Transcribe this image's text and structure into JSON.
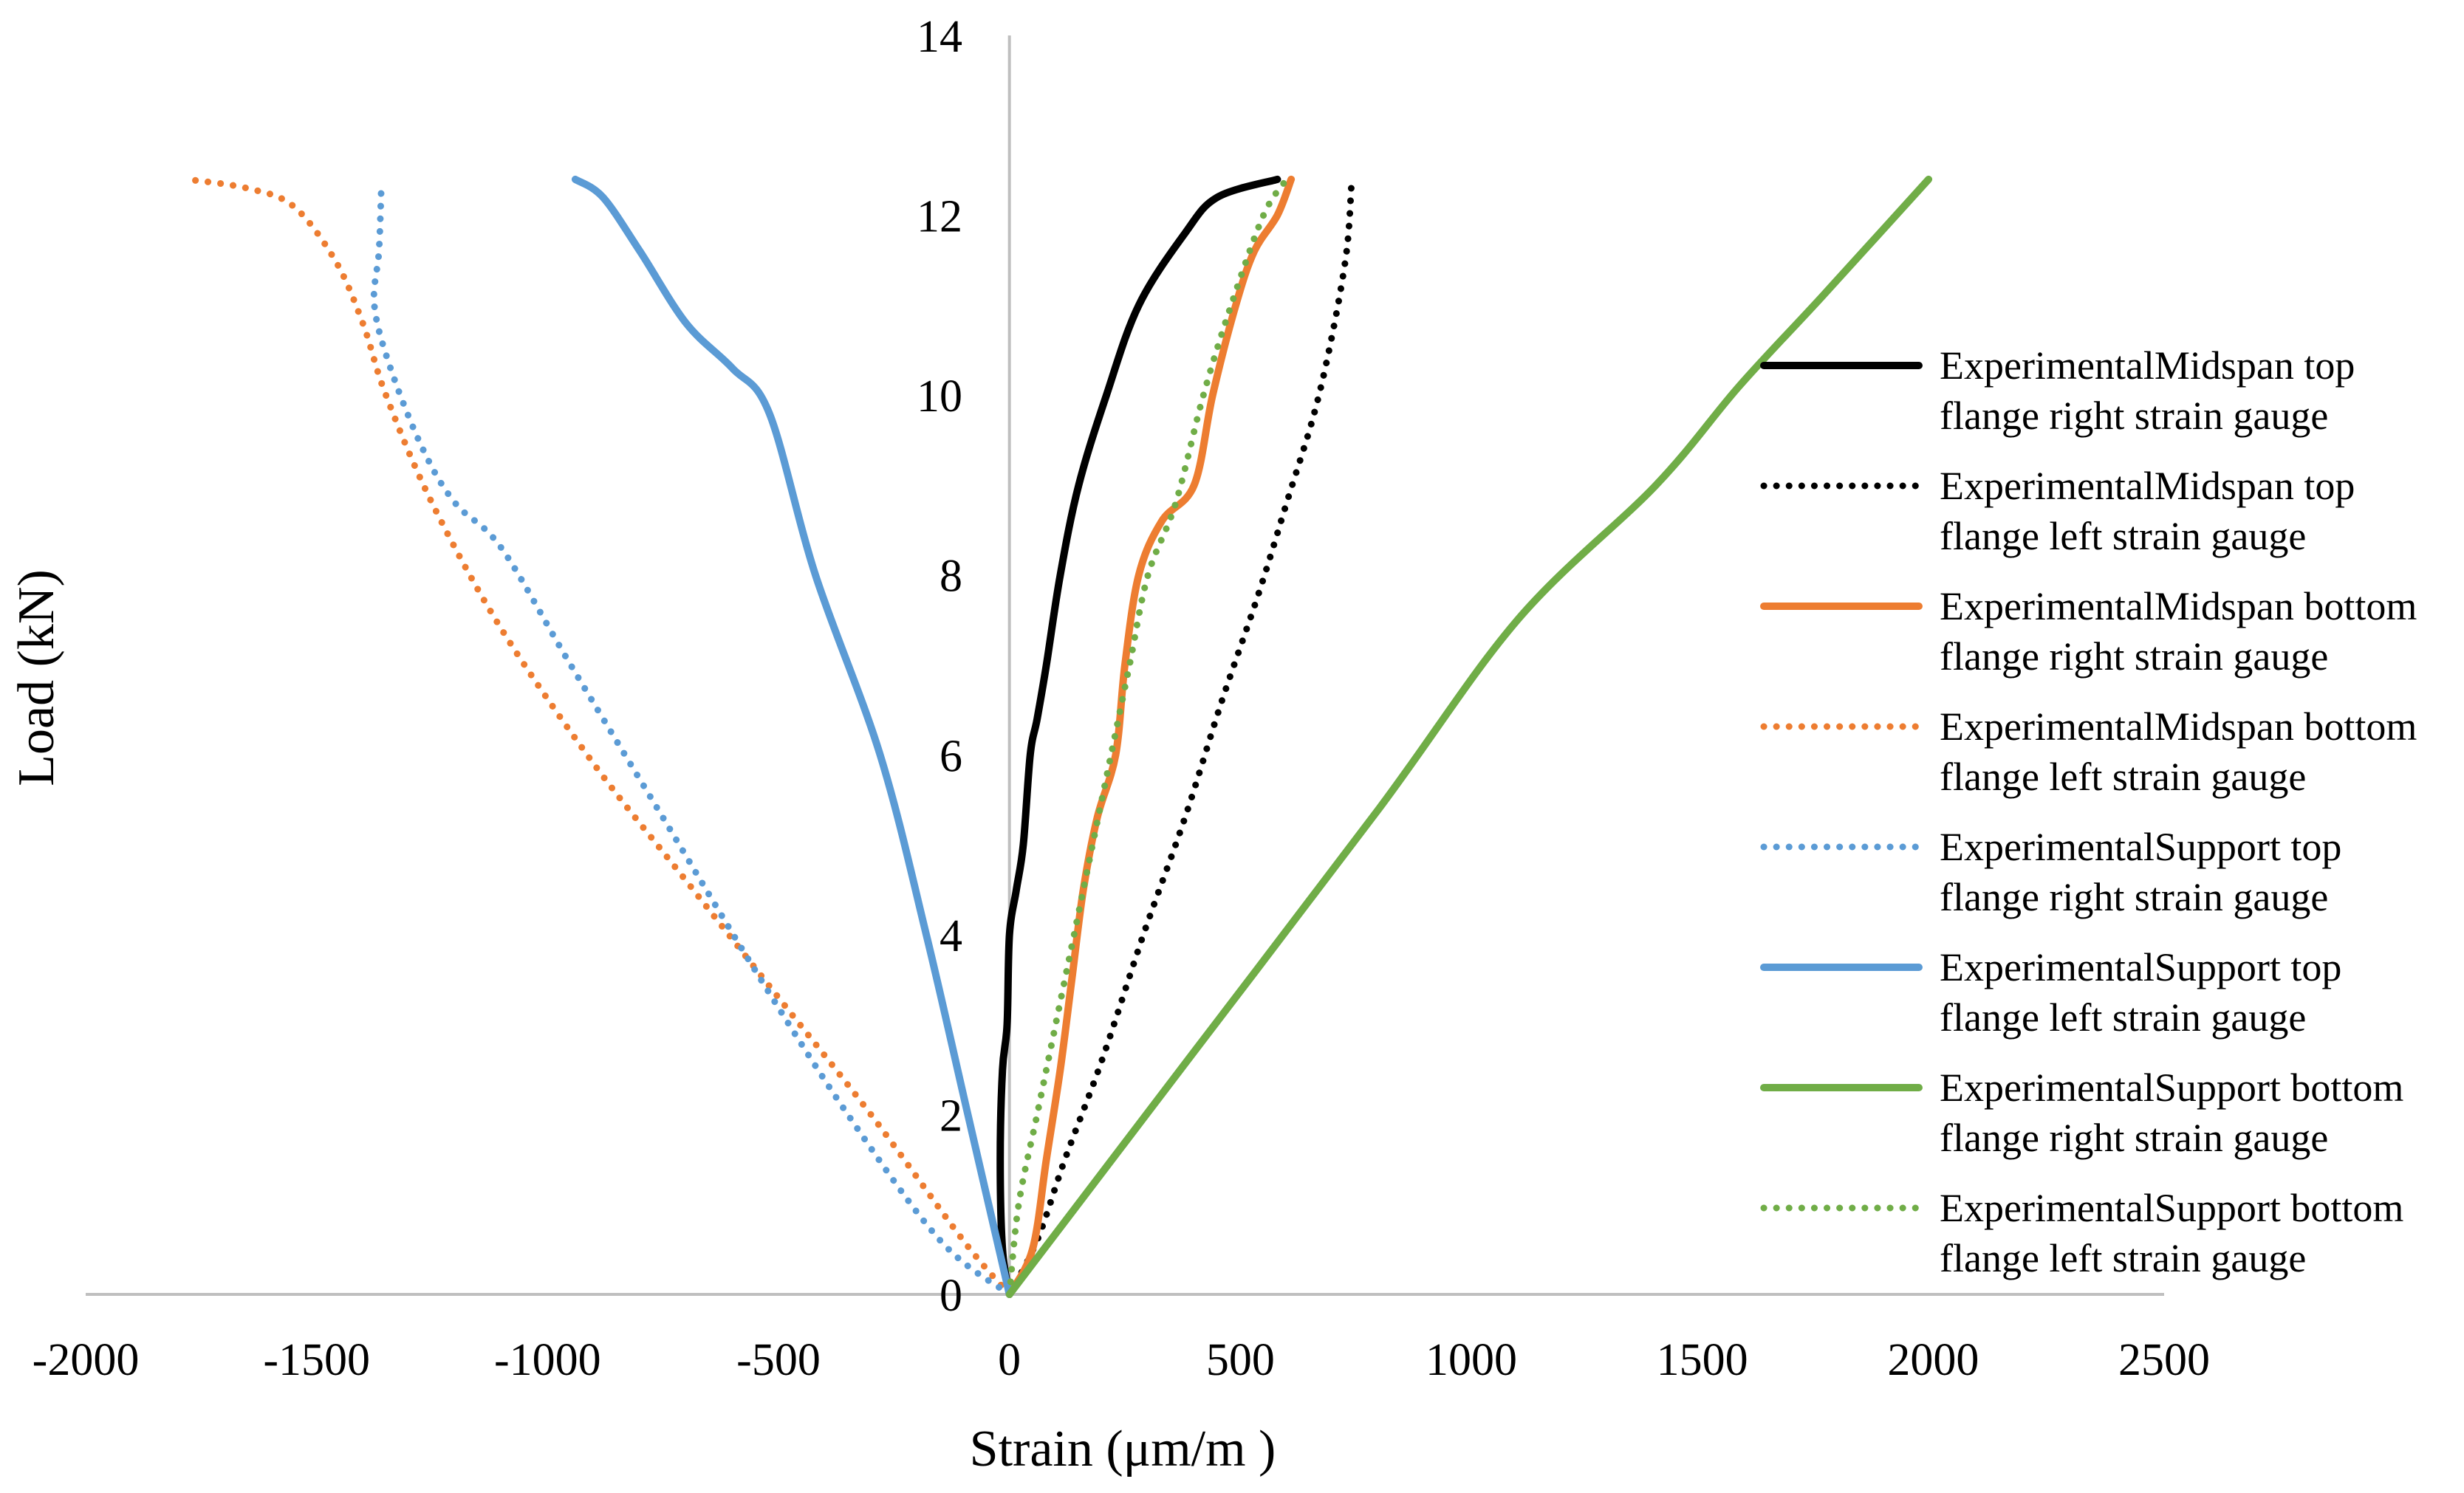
{
  "chart_data": {
    "type": "line",
    "title": "",
    "xlabel": "Strain (μm/m )",
    "ylabel": "Load (kN)",
    "xlim": [
      -2000,
      2500
    ],
    "ylim": [
      0,
      14
    ],
    "x_ticks": [
      -2000,
      -1500,
      -1000,
      -500,
      0,
      500,
      1000,
      1500,
      2000,
      2500
    ],
    "y_ticks": [
      0,
      2,
      4,
      6,
      8,
      10,
      12,
      14
    ],
    "x_tick_labels": [
      "-2000",
      "-1500",
      "-1000",
      "-500",
      "0",
      "500",
      "1000",
      "1500",
      "2000",
      "2500"
    ],
    "y_tick_labels": [
      "0",
      "2",
      "4",
      "6",
      "8",
      "10",
      "12",
      "14"
    ],
    "grid": false,
    "legend_position": "right",
    "series": [
      {
        "name": "ExperimentalMidspan top flange right strain gauge",
        "legend_lines": [
          "ExperimentalMidspan top",
          "flange right strain gauge"
        ],
        "color": "#000000",
        "style": "solid",
        "points": [
          [
            0,
            0
          ],
          [
            -15,
            0.5
          ],
          [
            -20,
            1.5
          ],
          [
            -15,
            2.5
          ],
          [
            -5,
            3
          ],
          [
            0,
            4
          ],
          [
            15,
            4.5
          ],
          [
            30,
            5
          ],
          [
            45,
            6
          ],
          [
            60,
            6.4
          ],
          [
            80,
            7
          ],
          [
            110,
            8
          ],
          [
            150,
            9
          ],
          [
            210,
            10
          ],
          [
            280,
            11
          ],
          [
            380,
            11.8
          ],
          [
            450,
            12.2
          ],
          [
            580,
            12.4
          ]
        ]
      },
      {
        "name": "ExperimentalMidspan top flange left strain gauge",
        "legend_lines": [
          "ExperimentalMidspan top",
          "flange left strain gauge"
        ],
        "color": "#000000",
        "style": "dotted",
        "points": [
          [
            0,
            0
          ],
          [
            60,
            0.6
          ],
          [
            120,
            1.5
          ],
          [
            200,
            2.6
          ],
          [
            290,
            4
          ],
          [
            380,
            5.3
          ],
          [
            460,
            6.6
          ],
          [
            540,
            7.8
          ],
          [
            600,
            8.8
          ],
          [
            660,
            9.8
          ],
          [
            700,
            10.7
          ],
          [
            730,
            11.6
          ],
          [
            740,
            12.3
          ]
        ]
      },
      {
        "name": "ExperimentalMidspan bottom flange right strain gauge",
        "legend_lines": [
          "ExperimentalMidspan bottom",
          "flange right strain gauge"
        ],
        "color": "#ED7D31",
        "style": "solid",
        "points": [
          [
            0,
            0
          ],
          [
            50,
            0.5
          ],
          [
            80,
            1.5
          ],
          [
            110,
            2.5
          ],
          [
            135,
            3.5
          ],
          [
            160,
            4.5
          ],
          [
            190,
            5.3
          ],
          [
            230,
            6
          ],
          [
            250,
            7
          ],
          [
            280,
            8
          ],
          [
            330,
            8.6
          ],
          [
            400,
            9
          ],
          [
            440,
            10
          ],
          [
            490,
            11
          ],
          [
            530,
            11.6
          ],
          [
            580,
            12
          ],
          [
            610,
            12.4
          ]
        ]
      },
      {
        "name": "ExperimentalMidspan bottom flange left strain gauge",
        "legend_lines": [
          "ExperimentalMidspan bottom",
          "flange left strain gauge"
        ],
        "color": "#ED7D31",
        "style": "dotted",
        "points": [
          [
            0,
            0
          ],
          [
            -100,
            0.6
          ],
          [
            -300,
            2
          ],
          [
            -500,
            3.3
          ],
          [
            -700,
            4.6
          ],
          [
            -900,
            5.9
          ],
          [
            -1100,
            7.4
          ],
          [
            -1250,
            8.8
          ],
          [
            -1350,
            10
          ],
          [
            -1400,
            10.8
          ],
          [
            -1460,
            11.5
          ],
          [
            -1550,
            12.1
          ],
          [
            -1650,
            12.3
          ],
          [
            -1780,
            12.4
          ]
        ]
      },
      {
        "name": "ExperimentalSupport top flange right strain gauge",
        "legend_lines": [
          "ExperimentalSupport top",
          "flange right strain gauge"
        ],
        "color": "#5B9BD5",
        "style": "dotted",
        "points": [
          [
            0,
            0
          ],
          [
            -150,
            0.6
          ],
          [
            -350,
            2
          ],
          [
            -550,
            3.6
          ],
          [
            -750,
            5.3
          ],
          [
            -950,
            7
          ],
          [
            -1100,
            8.3
          ],
          [
            -1200,
            8.8
          ],
          [
            -1270,
            9.4
          ],
          [
            -1340,
            10.3
          ],
          [
            -1375,
            11
          ],
          [
            -1365,
            11.6
          ],
          [
            -1360,
            12.3
          ]
        ]
      },
      {
        "name": "ExperimentalSupport top flange left strain gauge",
        "legend_lines": [
          "ExperimentalSupport top",
          "flange left strain gauge"
        ],
        "color": "#5B9BD5",
        "style": "solid",
        "points": [
          [
            0,
            0
          ],
          [
            -90,
            2
          ],
          [
            -180,
            4
          ],
          [
            -280,
            6
          ],
          [
            -420,
            8
          ],
          [
            -520,
            9.8
          ],
          [
            -600,
            10.3
          ],
          [
            -700,
            10.8
          ],
          [
            -800,
            11.6
          ],
          [
            -880,
            12.2
          ],
          [
            -940,
            12.4
          ]
        ]
      },
      {
        "name": "ExperimentalSupport bottom flange right strain gauge",
        "legend_lines": [
          "ExperimentalSupport bottom",
          "flange right strain gauge"
        ],
        "color": "#70AD47",
        "style": "solid",
        "points": [
          [
            0,
            0
          ],
          [
            400,
            2.7
          ],
          [
            800,
            5.4
          ],
          [
            1100,
            7.5
          ],
          [
            1400,
            9
          ],
          [
            1580,
            10.1
          ],
          [
            1760,
            11.1
          ],
          [
            1990,
            12.4
          ]
        ]
      },
      {
        "name": "ExperimentalSupport bottom flange left strain gauge",
        "legend_lines": [
          "ExperimentalSupport bottom",
          "flange left strain gauge"
        ],
        "color": "#70AD47",
        "style": "dotted",
        "points": [
          [
            0,
            0
          ],
          [
            20,
            1
          ],
          [
            60,
            2
          ],
          [
            100,
            3
          ],
          [
            140,
            4
          ],
          [
            180,
            5
          ],
          [
            220,
            6
          ],
          [
            260,
            7
          ],
          [
            300,
            8
          ],
          [
            360,
            8.8
          ],
          [
            420,
            10
          ],
          [
            480,
            11
          ],
          [
            550,
            12
          ],
          [
            600,
            12.4
          ]
        ]
      }
    ]
  }
}
